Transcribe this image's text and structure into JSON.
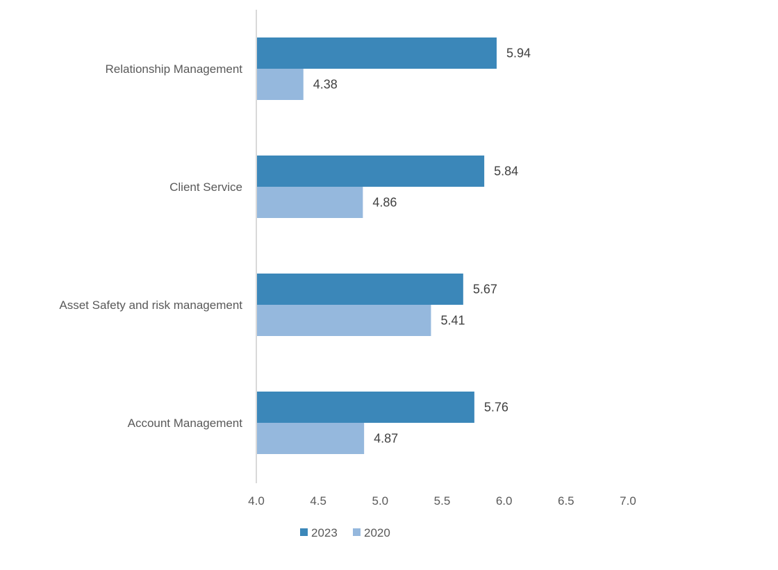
{
  "chart_data": {
    "type": "bar",
    "orientation": "horizontal",
    "categories": [
      "Relationship Management",
      "Client Service",
      "Asset Safety and risk management",
      "Account Management"
    ],
    "series": [
      {
        "name": "2023",
        "color": "#3b87b9",
        "values": [
          5.94,
          5.84,
          5.67,
          5.76
        ]
      },
      {
        "name": "2020",
        "color": "#95b8dd",
        "values": [
          4.38,
          4.86,
          5.41,
          4.87
        ]
      }
    ],
    "xlim": [
      4.0,
      7.0
    ],
    "x_ticks": [
      "4.0",
      "4.5",
      "5.0",
      "5.5",
      "6.0",
      "6.5",
      "7.0"
    ],
    "grid": false,
    "legend_position": "bottom",
    "data_labels": true
  }
}
